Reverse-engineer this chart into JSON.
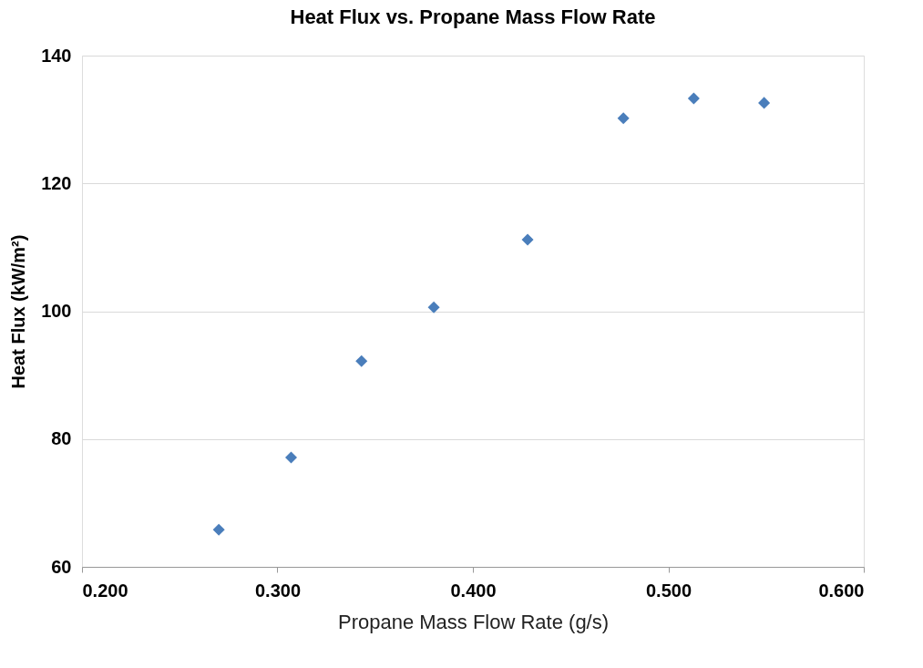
{
  "chart_data": {
    "type": "scatter",
    "title": "Heat Flux vs. Propane Mass Flow Rate",
    "xlabel": "Propane Mass Flow Rate (g/s)",
    "ylabel": "Heat Flux (kW/m²)",
    "x": [
      0.27,
      0.307,
      0.343,
      0.38,
      0.428,
      0.477,
      0.513,
      0.549
    ],
    "series": [
      {
        "color": "#4a7ebb",
        "values": [
          65.8,
          77.1,
          92.2,
          100.6,
          111.2,
          130.2,
          133.3,
          132.6
        ]
      }
    ],
    "xlim": [
      0.2,
      0.6
    ],
    "xticks": [
      {
        "value": 0.2,
        "label": "0.200"
      },
      {
        "value": 0.3,
        "label": "0.300"
      },
      {
        "value": 0.4,
        "label": "0.400"
      },
      {
        "value": 0.5,
        "label": "0.500"
      },
      {
        "value": 0.6,
        "label": "0.600"
      }
    ],
    "ylim": [
      60,
      140
    ],
    "yticks": [
      60,
      80,
      100,
      120,
      140
    ],
    "grid": "y",
    "legend": false,
    "marker": "diamond"
  }
}
